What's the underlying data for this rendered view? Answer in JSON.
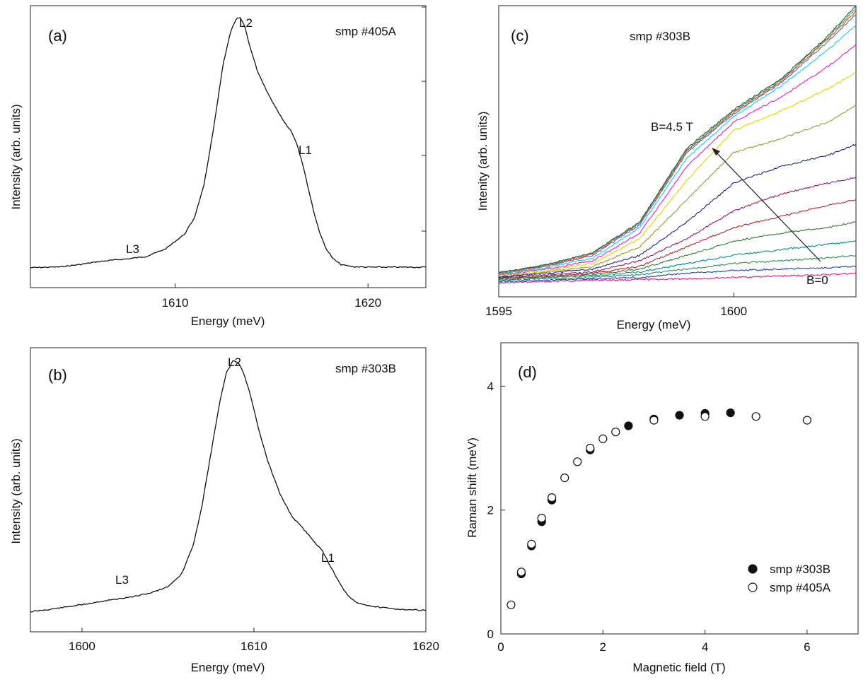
{
  "chart_data": [
    {
      "panel": "(a)",
      "type": "line",
      "sample_label": "smp #405A",
      "xlabel": "Energy (meV)",
      "ylabel": "Intensity (arb. units)",
      "xlim": [
        1602.5,
        1623
      ],
      "ylim": [
        -0.08,
        1.05
      ],
      "xticks": [
        1610,
        1620
      ],
      "series": [
        {
          "x": [
            1602.5,
            1604,
            1605,
            1606,
            1607,
            1607.5,
            1608.5,
            1609.5,
            1610.5,
            1611,
            1611.5,
            1612,
            1612.5,
            1612.9,
            1613.2,
            1613.4,
            1613.6,
            1613.9,
            1614.3,
            1614.8,
            1615.3,
            1615.7,
            1616.0,
            1616.3,
            1616.6,
            1616.9,
            1617.2,
            1617.5,
            1617.8,
            1618.2,
            1618.6,
            1619.2,
            1620,
            1621,
            1623
          ],
          "y": [
            0,
            0.003,
            0.012,
            0.024,
            0.032,
            0.035,
            0.045,
            0.075,
            0.135,
            0.2,
            0.33,
            0.56,
            0.82,
            0.95,
            1.0,
            1.0,
            0.97,
            0.88,
            0.78,
            0.7,
            0.63,
            0.58,
            0.55,
            0.5,
            0.42,
            0.32,
            0.22,
            0.14,
            0.08,
            0.035,
            0.012,
            0.004,
            0.002,
            0.002,
            0.002
          ]
        }
      ],
      "annotations": [
        {
          "text": "L2",
          "x": 1613.4,
          "y": 1.0
        },
        {
          "text": "L1",
          "x": 1616.4,
          "y": 0.55
        },
        {
          "text": "L3",
          "x": 1607.0,
          "y": 0.035
        }
      ]
    },
    {
      "panel": "(b)",
      "type": "line",
      "sample_label": "smp #303B",
      "xlabel": "Energy (meV)",
      "ylabel": "Intensity (arb. units)",
      "xlim": [
        1597,
        1620
      ],
      "ylim": [
        -0.08,
        1.05
      ],
      "xticks": [
        1600,
        1610,
        1620
      ],
      "series": [
        {
          "x": [
            1597,
            1598,
            1599,
            1600,
            1601,
            1602,
            1603,
            1604,
            1605,
            1605.8,
            1606.5,
            1607,
            1607.5,
            1608,
            1608.4,
            1608.8,
            1609.1,
            1609.4,
            1609.8,
            1610.3,
            1610.8,
            1611.5,
            1612.2,
            1613,
            1613.5,
            1614,
            1614.3,
            1614.7,
            1615.1,
            1615.5,
            1616,
            1617,
            1618,
            1619,
            1620
          ],
          "y": [
            0,
            0.008,
            0.018,
            0.028,
            0.04,
            0.05,
            0.06,
            0.075,
            0.1,
            0.15,
            0.27,
            0.43,
            0.63,
            0.83,
            0.95,
            1.0,
            0.99,
            0.95,
            0.86,
            0.72,
            0.6,
            0.47,
            0.38,
            0.32,
            0.28,
            0.24,
            0.2,
            0.15,
            0.1,
            0.06,
            0.035,
            0.02,
            0.012,
            0.008,
            0.006
          ]
        }
      ],
      "annotations": [
        {
          "text": "L2",
          "x": 1608.8,
          "y": 1.0
        },
        {
          "text": "L1",
          "x": 1614.3,
          "y": 0.2
        },
        {
          "text": "L3",
          "x": 1602.0,
          "y": 0.05
        }
      ]
    },
    {
      "panel": "(c)",
      "type": "line",
      "sample_label": "smp #303B",
      "xlabel": "Energy (meV)",
      "ylabel": "Intenity (arb. units)",
      "xlim": [
        1595,
        1602.6
      ],
      "ylim": [
        -0.05,
        1.0
      ],
      "xticks": [
        1595,
        1600
      ],
      "field_annotation_top": "B=4.5 T",
      "field_annotation_bottom": "B=0",
      "series": [
        {
          "color": "#e8148c",
          "x": [
            1595,
            1596,
            1597,
            1598,
            1599,
            1600,
            1601,
            1602,
            1602.6
          ],
          "y": [
            0,
            0.005,
            0.01,
            0.012,
            0.015,
            0.02,
            0.025,
            0.03,
            0.035
          ]
        },
        {
          "color": "#1a3fb8",
          "x": [
            1595,
            1596,
            1597,
            1598,
            1599,
            1600,
            1601,
            1602,
            1602.6
          ],
          "y": [
            0.005,
            0.01,
            0.015,
            0.02,
            0.035,
            0.045,
            0.05,
            0.055,
            0.06
          ]
        },
        {
          "color": "#2e8b57",
          "x": [
            1595,
            1596,
            1597,
            1598,
            1599,
            1600,
            1601,
            1602,
            1602.6
          ],
          "y": [
            0.01,
            0.015,
            0.02,
            0.03,
            0.05,
            0.07,
            0.08,
            0.09,
            0.1
          ]
        },
        {
          "color": "#008b8b",
          "x": [
            1595,
            1596,
            1597,
            1598,
            1599,
            1600,
            1601,
            1602,
            1602.6
          ],
          "y": [
            0.012,
            0.02,
            0.025,
            0.04,
            0.07,
            0.1,
            0.12,
            0.14,
            0.15
          ]
        },
        {
          "color": "#2d7a2d",
          "x": [
            1595,
            1596,
            1597,
            1598,
            1599,
            1600,
            1601,
            1602,
            1602.6
          ],
          "y": [
            0.015,
            0.022,
            0.03,
            0.05,
            0.1,
            0.15,
            0.18,
            0.2,
            0.22
          ]
        },
        {
          "color": "#b22222",
          "x": [
            1595,
            1596,
            1597,
            1598,
            1599,
            1600,
            1601,
            1602,
            1602.6
          ],
          "y": [
            0.018,
            0.025,
            0.035,
            0.06,
            0.13,
            0.2,
            0.24,
            0.28,
            0.3
          ]
        },
        {
          "color": "#8b1a6b",
          "x": [
            1595,
            1596,
            1597,
            1598,
            1599,
            1600,
            1601,
            1602,
            1602.6
          ],
          "y": [
            0.02,
            0.03,
            0.04,
            0.08,
            0.16,
            0.26,
            0.32,
            0.36,
            0.38
          ]
        },
        {
          "color": "#1a237e",
          "x": [
            1595,
            1596,
            1597,
            1598,
            1599,
            1600,
            1601,
            1602,
            1602.6
          ],
          "y": [
            0.022,
            0.035,
            0.05,
            0.1,
            0.22,
            0.36,
            0.42,
            0.46,
            0.5
          ]
        },
        {
          "color": "#9a9a2e",
          "x": [
            1595,
            1596,
            1597,
            1598,
            1599,
            1600,
            1601,
            1602,
            1602.6
          ],
          "y": [
            0.025,
            0.04,
            0.06,
            0.13,
            0.3,
            0.47,
            0.52,
            0.58,
            0.64
          ]
        },
        {
          "color": "#e6d200",
          "x": [
            1595,
            1596,
            1597,
            1598,
            1599,
            1600,
            1601,
            1602,
            1602.6
          ],
          "y": [
            0.028,
            0.045,
            0.07,
            0.16,
            0.37,
            0.55,
            0.62,
            0.7,
            0.76
          ]
        },
        {
          "color": "#e020d0",
          "x": [
            1595,
            1596,
            1597,
            1598,
            1599,
            1600,
            1601,
            1602,
            1602.6
          ],
          "y": [
            0.03,
            0.05,
            0.08,
            0.18,
            0.42,
            0.58,
            0.67,
            0.78,
            0.86
          ]
        },
        {
          "color": "#20c8e8",
          "x": [
            1595,
            1596,
            1597,
            1598,
            1599,
            1600,
            1601,
            1602,
            1602.6
          ],
          "y": [
            0.032,
            0.055,
            0.09,
            0.2,
            0.45,
            0.6,
            0.71,
            0.84,
            0.93
          ]
        },
        {
          "color": "#4169e1",
          "x": [
            1595,
            1596,
            1597,
            1598,
            1599,
            1600,
            1601,
            1602,
            1602.6
          ],
          "y": [
            0.034,
            0.06,
            0.1,
            0.21,
            0.47,
            0.61,
            0.72,
            0.87,
            0.97
          ]
        },
        {
          "color": "#ff4500",
          "x": [
            1595,
            1596,
            1597,
            1598,
            1599,
            1600,
            1601,
            1602,
            1602.6
          ],
          "y": [
            0.036,
            0.062,
            0.105,
            0.215,
            0.475,
            0.615,
            0.725,
            0.88,
            0.98
          ]
        },
        {
          "color": "#32a852",
          "x": [
            1595,
            1596,
            1597,
            1598,
            1599,
            1600,
            1601,
            1602,
            1602.6
          ],
          "y": [
            0.037,
            0.064,
            0.108,
            0.218,
            0.48,
            0.62,
            0.73,
            0.885,
            0.99
          ]
        },
        {
          "color": "#2f4f4f",
          "x": [
            1595,
            1596,
            1597,
            1598,
            1599,
            1600,
            1601,
            1602,
            1602.6
          ],
          "y": [
            0.038,
            0.065,
            0.11,
            0.22,
            0.485,
            0.625,
            0.735,
            0.89,
            1.0
          ]
        }
      ]
    },
    {
      "panel": "(d)",
      "type": "scatter",
      "xlabel": "Magnetic field (T)",
      "ylabel": "Raman shift (meV)",
      "xlim": [
        0,
        7
      ],
      "ylim": [
        0,
        4.7
      ],
      "xticks": [
        0,
        2,
        4,
        6
      ],
      "yticks": [
        0,
        2,
        4
      ],
      "legend_position": "bottom-right",
      "series": [
        {
          "name": "smp #303B",
          "marker": "filled-circle",
          "x": [
            0.4,
            0.6,
            0.8,
            1.0,
            1.75,
            2.5,
            3.0,
            3.5,
            4.0,
            4.5
          ],
          "y": [
            0.97,
            1.42,
            1.81,
            2.16,
            2.97,
            3.36,
            3.47,
            3.53,
            3.56,
            3.57
          ]
        },
        {
          "name": "smp #405A",
          "marker": "open-circle",
          "x": [
            0.2,
            0.4,
            0.6,
            0.8,
            1.0,
            1.25,
            1.5,
            1.75,
            2.0,
            2.25,
            3.0,
            4.0,
            5.0,
            6.0
          ],
          "y": [
            0.47,
            1.0,
            1.45,
            1.87,
            2.2,
            2.52,
            2.78,
            3.0,
            3.15,
            3.26,
            3.45,
            3.51,
            3.51,
            3.45
          ]
        }
      ]
    }
  ]
}
